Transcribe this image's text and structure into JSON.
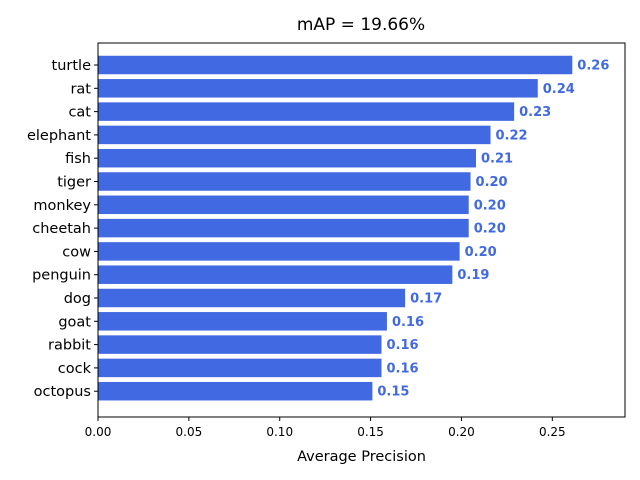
{
  "chart_data": {
    "type": "bar",
    "orientation": "horizontal",
    "title": "mAP = 19.66%",
    "xlabel": "Average Precision",
    "ylabel": "",
    "xlim": [
      0,
      0.29
    ],
    "xticks": [
      0.0,
      0.05,
      0.1,
      0.15,
      0.2,
      0.25
    ],
    "xtick_labels": [
      "0.00",
      "0.05",
      "0.10",
      "0.15",
      "0.20",
      "0.25"
    ],
    "categories": [
      "turtle",
      "rat",
      "cat",
      "elephant",
      "fish",
      "tiger",
      "monkey",
      "cheetah",
      "cow",
      "penguin",
      "dog",
      "goat",
      "rabbit",
      "cock",
      "octopus"
    ],
    "values": [
      0.261,
      0.242,
      0.229,
      0.216,
      0.208,
      0.205,
      0.204,
      0.204,
      0.199,
      0.195,
      0.169,
      0.159,
      0.156,
      0.156,
      0.151
    ],
    "value_labels": [
      "0.26",
      "0.24",
      "0.23",
      "0.22",
      "0.21",
      "0.20",
      "0.20",
      "0.20",
      "0.20",
      "0.19",
      "0.17",
      "0.16",
      "0.16",
      "0.16",
      "0.15"
    ],
    "bar_color": "#4169e1",
    "grid": false,
    "legend": "none"
  }
}
